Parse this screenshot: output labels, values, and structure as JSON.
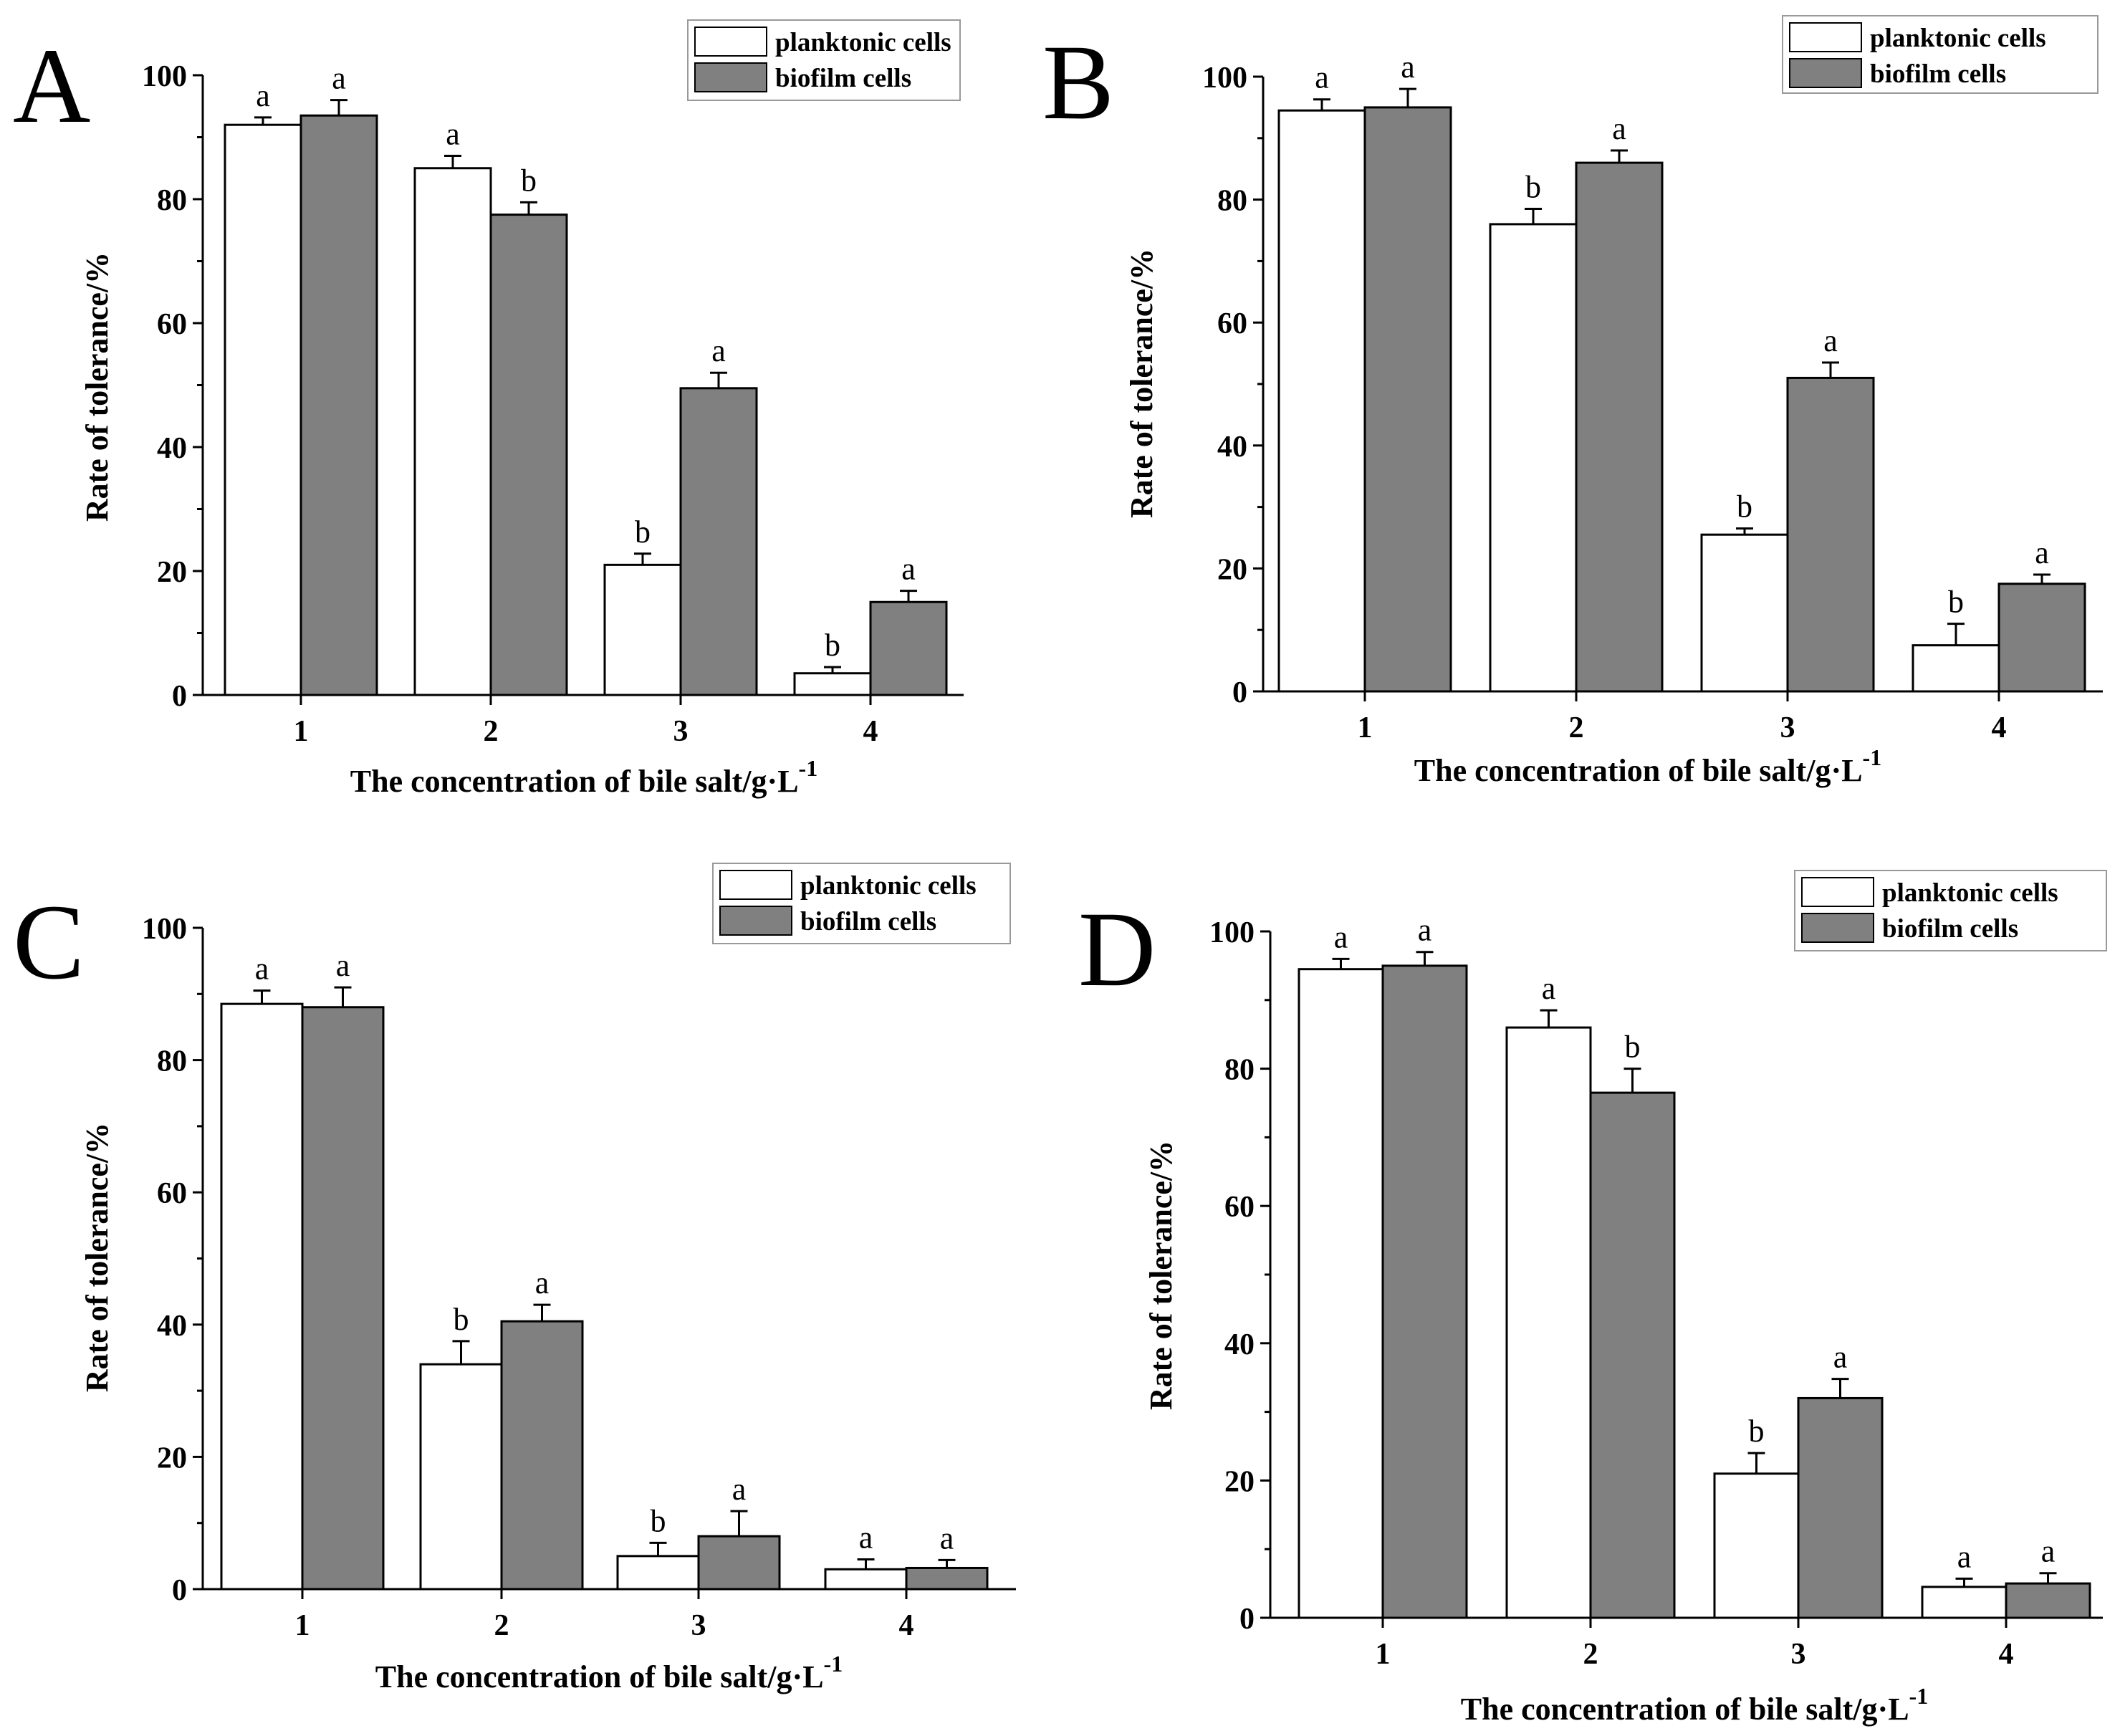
{
  "figure": {
    "colors": {
      "planktonic": "#ffffff",
      "biofilm": "#808080",
      "stroke": "#000000"
    }
  },
  "chart_data": [
    {
      "type": "bar",
      "panel": "A",
      "title": "",
      "xlabel": "The concentration of bile salt/g·L",
      "xlabel_superscript": "-1",
      "ylabel": "Rate of tolerance/%",
      "ylim": [
        0,
        100
      ],
      "yticks": [
        0,
        20,
        40,
        60,
        80,
        100
      ],
      "categories": [
        "1",
        "2",
        "3",
        "4"
      ],
      "legend": {
        "position": "top-right"
      },
      "series": [
        {
          "name": "planktonic cells",
          "values": [
            92,
            85,
            21,
            3.5
          ],
          "errors": [
            1.2,
            2.0,
            1.8,
            1.0
          ],
          "labels": [
            "a",
            "a",
            "b",
            "b"
          ]
        },
        {
          "name": "biofilm cells",
          "values": [
            93.5,
            77.5,
            49.5,
            15
          ],
          "errors": [
            2.5,
            2.0,
            2.5,
            1.8
          ],
          "labels": [
            "a",
            "b",
            "a",
            "a"
          ]
        }
      ]
    },
    {
      "type": "bar",
      "panel": "B",
      "title": "",
      "xlabel": "The concentration of bile salt/g·L",
      "xlabel_superscript": "-1",
      "ylabel": "Rate of tolerance/%",
      "ylim": [
        0,
        100
      ],
      "yticks": [
        0,
        20,
        40,
        60,
        80,
        100
      ],
      "categories": [
        "1",
        "2",
        "3",
        "4"
      ],
      "legend": {
        "position": "top-right"
      },
      "series": [
        {
          "name": "planktonic cells",
          "values": [
            94.5,
            76,
            25.5,
            7.5
          ],
          "errors": [
            1.8,
            2.5,
            1.0,
            3.5
          ],
          "labels": [
            "a",
            "b",
            "b",
            "b"
          ]
        },
        {
          "name": "biofilm cells",
          "values": [
            95,
            86,
            51,
            17.5
          ],
          "errors": [
            3.0,
            2.0,
            2.5,
            1.5
          ],
          "labels": [
            "a",
            "a",
            "a",
            "a"
          ]
        }
      ]
    },
    {
      "type": "bar",
      "panel": "C",
      "title": "",
      "xlabel": "The concentration of bile salt/g·L",
      "xlabel_superscript": "-1",
      "ylabel": "Rate of tolerance/%",
      "ylim": [
        0,
        100
      ],
      "yticks": [
        0,
        20,
        40,
        60,
        80,
        100
      ],
      "categories": [
        "1",
        "2",
        "3",
        "4"
      ],
      "legend": {
        "position": "top-right"
      },
      "series": [
        {
          "name": "planktonic cells",
          "values": [
            88.5,
            34,
            5,
            3
          ],
          "errors": [
            2.0,
            3.5,
            2.0,
            1.5
          ],
          "labels": [
            "a",
            "b",
            "b",
            "a"
          ]
        },
        {
          "name": "biofilm cells",
          "values": [
            88,
            40.5,
            8,
            3.2
          ],
          "errors": [
            3.0,
            2.5,
            3.8,
            1.2
          ],
          "labels": [
            "a",
            "a",
            "a",
            "a"
          ]
        }
      ]
    },
    {
      "type": "bar",
      "panel": "D",
      "title": "",
      "xlabel": "The concentration of bile salt/g·L",
      "xlabel_superscript": "-1",
      "ylabel": "Rate of tolerance/%",
      "ylim": [
        0,
        100
      ],
      "yticks": [
        0,
        20,
        40,
        60,
        80,
        100
      ],
      "categories": [
        "1",
        "2",
        "3",
        "4"
      ],
      "legend": {
        "position": "top-right"
      },
      "series": [
        {
          "name": "planktonic cells",
          "values": [
            94.5,
            86,
            21,
            4.5
          ],
          "errors": [
            1.5,
            2.5,
            3.0,
            1.2
          ],
          "labels": [
            "a",
            "a",
            "b",
            "a"
          ]
        },
        {
          "name": "biofilm cells",
          "values": [
            95,
            76.5,
            32,
            5
          ],
          "errors": [
            2.0,
            3.5,
            2.8,
            1.5
          ],
          "labels": [
            "a",
            "b",
            "a",
            "a"
          ]
        }
      ]
    }
  ]
}
